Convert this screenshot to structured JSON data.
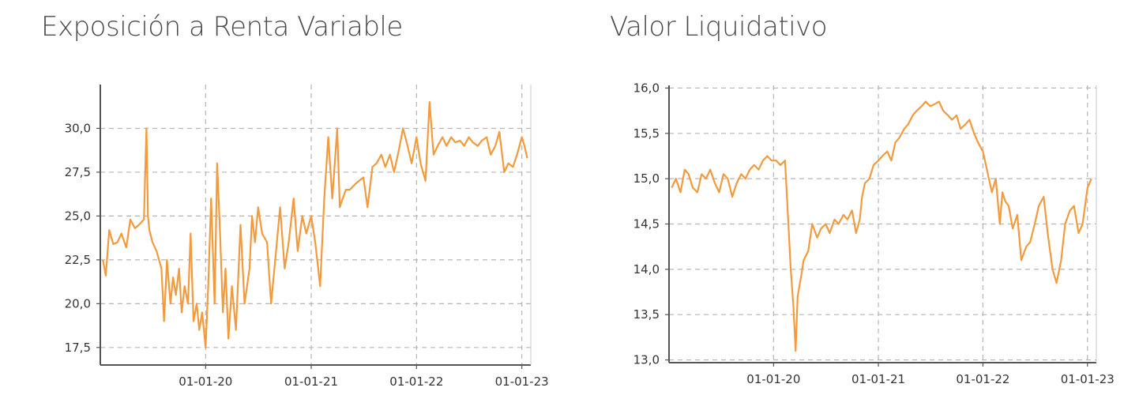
{
  "chart_data": [
    {
      "type": "line",
      "title": "Exposición a Renta Variable",
      "xlabel": "",
      "ylabel": "",
      "color": "#f29a3e",
      "x_range": [
        "2019-01-01",
        "2023-02-01"
      ],
      "ylim": [
        16.5,
        32.5
      ],
      "y_ticks": [
        "17,5",
        "20,0",
        "22,5",
        "25,0",
        "27,5",
        "30,0"
      ],
      "y_tick_values": [
        17.5,
        20.0,
        22.5,
        25.0,
        27.5,
        30.0
      ],
      "x_ticks": [
        "01-01-20",
        "01-01-21",
        "01-01-22",
        "01-01-23"
      ],
      "x_tick_dates": [
        "2020-01-01",
        "2021-01-01",
        "2022-01-01",
        "2023-01-01"
      ],
      "grid": true,
      "series": [
        {
          "x": [
            "2019-01-10",
            "2019-01-20",
            "2019-02-01",
            "2019-02-15",
            "2019-03-01",
            "2019-03-15",
            "2019-04-01",
            "2019-04-15",
            "2019-05-01",
            "2019-05-15",
            "2019-06-01",
            "2019-06-10",
            "2019-06-15",
            "2019-06-20",
            "2019-07-01",
            "2019-07-15",
            "2019-08-01",
            "2019-08-10",
            "2019-08-20",
            "2019-09-01",
            "2019-09-10",
            "2019-09-20",
            "2019-10-01",
            "2019-10-10",
            "2019-10-20",
            "2019-11-01",
            "2019-11-10",
            "2019-11-20",
            "2019-12-01",
            "2019-12-10",
            "2019-12-20",
            "2020-01-01",
            "2020-01-10",
            "2020-01-20",
            "2020-02-01",
            "2020-02-10",
            "2020-02-20",
            "2020-03-01",
            "2020-03-10",
            "2020-03-20",
            "2020-04-01",
            "2020-04-15",
            "2020-05-01",
            "2020-05-15",
            "2020-06-01",
            "2020-06-10",
            "2020-06-20",
            "2020-07-01",
            "2020-07-15",
            "2020-08-01",
            "2020-08-15",
            "2020-09-01",
            "2020-09-15",
            "2020-10-01",
            "2020-10-15",
            "2020-11-01",
            "2020-11-15",
            "2020-12-01",
            "2020-12-15",
            "2021-01-01",
            "2021-01-15",
            "2021-02-01",
            "2021-02-15",
            "2021-03-01",
            "2021-03-15",
            "2021-04-01",
            "2021-04-10",
            "2021-04-20",
            "2021-05-01",
            "2021-05-15",
            "2021-06-01",
            "2021-06-15",
            "2021-07-01",
            "2021-07-15",
            "2021-08-01",
            "2021-08-15",
            "2021-09-01",
            "2021-09-15",
            "2021-10-01",
            "2021-10-15",
            "2021-11-01",
            "2021-11-15",
            "2021-12-01",
            "2021-12-15",
            "2022-01-01",
            "2022-01-15",
            "2022-02-01",
            "2022-02-15",
            "2022-03-01",
            "2022-03-15",
            "2022-04-01",
            "2022-04-15",
            "2022-05-01",
            "2022-05-15",
            "2022-06-01",
            "2022-06-15",
            "2022-07-01",
            "2022-07-15",
            "2022-08-01",
            "2022-08-15",
            "2022-09-01",
            "2022-09-15",
            "2022-10-01",
            "2022-10-15",
            "2022-11-01",
            "2022-11-15",
            "2022-12-01",
            "2022-12-15",
            "2023-01-01",
            "2023-01-10",
            "2023-01-20"
          ],
          "y": [
            22.5,
            21.6,
            24.2,
            23.4,
            23.5,
            24.0,
            23.2,
            24.8,
            24.3,
            24.5,
            24.8,
            30.0,
            25.0,
            24.2,
            23.5,
            23.0,
            22.0,
            19.0,
            22.5,
            20.0,
            21.5,
            20.5,
            22.0,
            19.5,
            21.0,
            20.0,
            24.0,
            19.0,
            20.0,
            18.5,
            19.5,
            17.5,
            21.0,
            26.0,
            20.0,
            28.0,
            24.0,
            19.5,
            22.0,
            18.0,
            21.0,
            18.5,
            24.5,
            20.0,
            22.0,
            25.0,
            23.5,
            25.5,
            24.0,
            23.5,
            20.0,
            23.0,
            25.5,
            22.0,
            23.5,
            26.0,
            23.0,
            25.0,
            24.0,
            25.0,
            23.5,
            21.0,
            26.0,
            29.5,
            26.0,
            30.0,
            25.5,
            26.0,
            26.5,
            26.5,
            26.8,
            27.0,
            27.2,
            25.5,
            27.8,
            28.0,
            28.5,
            27.8,
            28.5,
            27.5,
            28.8,
            30.0,
            29.0,
            28.0,
            29.5,
            28.0,
            27.0,
            31.5,
            28.5,
            29.0,
            29.5,
            29.0,
            29.5,
            29.2,
            29.3,
            29.0,
            29.5,
            29.2,
            29.0,
            29.3,
            29.5,
            28.5,
            29.0,
            29.8,
            27.5,
            28.0,
            27.8,
            28.5,
            29.5,
            29.0,
            28.3
          ]
        }
      ]
    },
    {
      "type": "line",
      "title": "Valor Liquidativo",
      "xlabel": "",
      "ylabel": "",
      "color": "#f29a3e",
      "x_range": [
        "2019-01-01",
        "2023-02-01"
      ],
      "ylim": [
        12.97,
        16.03
      ],
      "y_ticks": [
        "13,0",
        "13,5",
        "14,0",
        "14,5",
        "15,0",
        "15,5",
        "16,0"
      ],
      "y_tick_values": [
        13.0,
        13.5,
        14.0,
        14.5,
        15.0,
        15.5,
        16.0
      ],
      "x_ticks": [
        "01-01-20",
        "01-01-21",
        "01-01-22",
        "01-01-23"
      ],
      "x_tick_dates": [
        "2020-01-01",
        "2021-01-01",
        "2022-01-01",
        "2023-01-01"
      ],
      "grid": true,
      "series": [
        {
          "x": [
            "2019-01-10",
            "2019-01-25",
            "2019-02-10",
            "2019-02-25",
            "2019-03-10",
            "2019-03-25",
            "2019-04-10",
            "2019-04-25",
            "2019-05-10",
            "2019-05-25",
            "2019-06-10",
            "2019-06-25",
            "2019-07-10",
            "2019-07-25",
            "2019-08-10",
            "2019-08-25",
            "2019-09-10",
            "2019-09-25",
            "2019-10-10",
            "2019-10-25",
            "2019-11-10",
            "2019-11-25",
            "2019-12-10",
            "2019-12-25",
            "2020-01-10",
            "2020-01-25",
            "2020-02-10",
            "2020-02-20",
            "2020-03-01",
            "2020-03-10",
            "2020-03-18",
            "2020-03-25",
            "2020-04-05",
            "2020-04-15",
            "2020-05-01",
            "2020-05-15",
            "2020-06-01",
            "2020-06-15",
            "2020-07-01",
            "2020-07-15",
            "2020-08-01",
            "2020-08-15",
            "2020-09-01",
            "2020-09-15",
            "2020-10-01",
            "2020-10-15",
            "2020-10-28",
            "2020-11-05",
            "2020-11-15",
            "2020-12-01",
            "2020-12-15",
            "2021-01-01",
            "2021-01-15",
            "2021-02-01",
            "2021-02-15",
            "2021-03-01",
            "2021-03-15",
            "2021-04-01",
            "2021-04-15",
            "2021-05-01",
            "2021-05-15",
            "2021-06-01",
            "2021-06-15",
            "2021-07-01",
            "2021-07-15",
            "2021-08-01",
            "2021-08-15",
            "2021-09-01",
            "2021-09-15",
            "2021-10-01",
            "2021-10-15",
            "2021-11-01",
            "2021-11-15",
            "2021-12-01",
            "2021-12-15",
            "2022-01-01",
            "2022-01-15",
            "2022-02-01",
            "2022-02-15",
            "2022-03-01",
            "2022-03-10",
            "2022-03-20",
            "2022-04-01",
            "2022-04-15",
            "2022-05-01",
            "2022-05-15",
            "2022-06-01",
            "2022-06-15",
            "2022-07-01",
            "2022-07-15",
            "2022-08-01",
            "2022-08-15",
            "2022-09-01",
            "2022-09-15",
            "2022-10-01",
            "2022-10-15",
            "2022-11-01",
            "2022-11-15",
            "2022-12-01",
            "2022-12-15",
            "2023-01-01",
            "2023-01-15"
          ],
          "y": [
            14.9,
            15.0,
            14.85,
            15.1,
            15.05,
            14.9,
            14.85,
            15.05,
            15.0,
            15.1,
            14.95,
            14.85,
            15.05,
            15.0,
            14.8,
            14.95,
            15.05,
            15.0,
            15.1,
            15.15,
            15.1,
            15.2,
            15.25,
            15.2,
            15.2,
            15.15,
            15.2,
            14.6,
            14.0,
            13.6,
            13.1,
            13.7,
            13.9,
            14.1,
            14.2,
            14.5,
            14.35,
            14.45,
            14.5,
            14.4,
            14.55,
            14.5,
            14.6,
            14.55,
            14.65,
            14.4,
            14.55,
            14.8,
            14.95,
            15.0,
            15.15,
            15.2,
            15.25,
            15.3,
            15.2,
            15.4,
            15.45,
            15.55,
            15.6,
            15.7,
            15.75,
            15.8,
            15.85,
            15.8,
            15.82,
            15.85,
            15.75,
            15.7,
            15.65,
            15.7,
            15.55,
            15.6,
            15.65,
            15.5,
            15.4,
            15.3,
            15.1,
            14.85,
            15.0,
            14.5,
            14.85,
            14.75,
            14.7,
            14.45,
            14.6,
            14.1,
            14.25,
            14.3,
            14.5,
            14.7,
            14.8,
            14.4,
            14.0,
            13.85,
            14.1,
            14.5,
            14.65,
            14.7,
            14.4,
            14.5,
            14.9,
            15.0
          ]
        }
      ]
    }
  ]
}
